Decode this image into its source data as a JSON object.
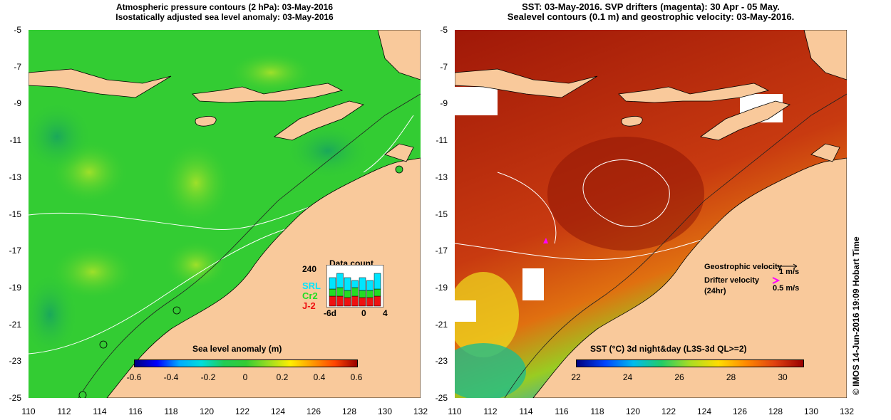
{
  "left_panel": {
    "title_line1": "Atmospheric pressure contours (2 hPa): 03-May-2016",
    "title_line2": "Isostatically adjusted sea level anomaly: 03-May-2016",
    "colorbar": {
      "title": "Sea level anomaly (m)",
      "ticks": [
        "-0.6",
        "-0.4",
        "-0.2",
        "0",
        "0.2",
        "0.4",
        "0.6"
      ]
    },
    "data_count": {
      "title": "Data count",
      "ymax": "240",
      "x_ticks": [
        "-6d",
        "0",
        "4"
      ],
      "series": [
        {
          "name": "SRL",
          "color": "#00e5ff"
        },
        {
          "name": "Cr2",
          "color": "#22dd22"
        },
        {
          "name": "J-2",
          "color": "#ee1111"
        }
      ]
    }
  },
  "right_panel": {
    "title_line1": "SST: 03-May-2016. SVP drifters (magenta): 30 Apr - 05 May.",
    "title_line2": "Sealevel contours (0.1 m) and geostrophic velocity: 03-May-2016.",
    "colorbar": {
      "title": "SST (°C) 3d night&day (L3S-3d QL>=2)",
      "ticks": [
        "22",
        "24",
        "26",
        "28",
        "30"
      ]
    },
    "legend": {
      "geo_label": "Geostrophic velocity",
      "geo_scale": "1 m/s",
      "drifter_label": "Drifter velocity",
      "drifter_sub": "(24hr)",
      "drifter_scale": "0.5 m/s"
    }
  },
  "axes": {
    "x_ticks": [
      "110",
      "112",
      "114",
      "116",
      "118",
      "120",
      "122",
      "124",
      "126",
      "128",
      "130",
      "132"
    ],
    "y_ticks": [
      "-5",
      "-7",
      "-9",
      "-11",
      "-13",
      "-15",
      "-17",
      "-19",
      "-21",
      "-23",
      "-25"
    ]
  },
  "credit": "© IMOS 14-Jun-2016 19:09 Hobart Time",
  "colors": {
    "land": "#f9c99b",
    "sla_sea": "#33cc33",
    "sst_sea": "#c83a10",
    "drifter": "#ff00ff"
  }
}
